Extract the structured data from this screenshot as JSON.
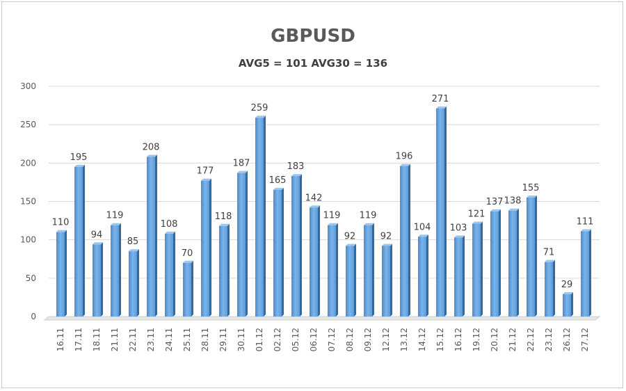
{
  "chart_data": {
    "type": "bar",
    "title": "GBPUSD",
    "subtitle": "AVG5 = 101 AVG30 = 136",
    "xlabel": "",
    "ylabel": "",
    "ylim": [
      0,
      300
    ],
    "yticks": [
      0,
      50,
      100,
      150,
      200,
      250,
      300
    ],
    "grid": true,
    "categories": [
      "16.11",
      "17.11",
      "18.11",
      "21.11",
      "22.11",
      "23.11",
      "24.11",
      "25.11",
      "28.11",
      "29.11",
      "30.11",
      "01.12",
      "02.12",
      "05.12",
      "06.12",
      "07.12",
      "08.12",
      "09.12",
      "12.12",
      "13.12",
      "14.12",
      "15.12",
      "16.12",
      "19.12",
      "20.12",
      "21.12",
      "22.12",
      "23.12",
      "26.12",
      "27.12"
    ],
    "values": [
      110,
      195,
      94,
      119,
      85,
      208,
      108,
      70,
      177,
      118,
      187,
      259,
      165,
      183,
      142,
      119,
      92,
      119,
      92,
      196,
      104,
      271,
      103,
      121,
      137,
      138,
      155,
      71,
      29,
      111
    ],
    "bar_color": "#5b9bd5"
  }
}
